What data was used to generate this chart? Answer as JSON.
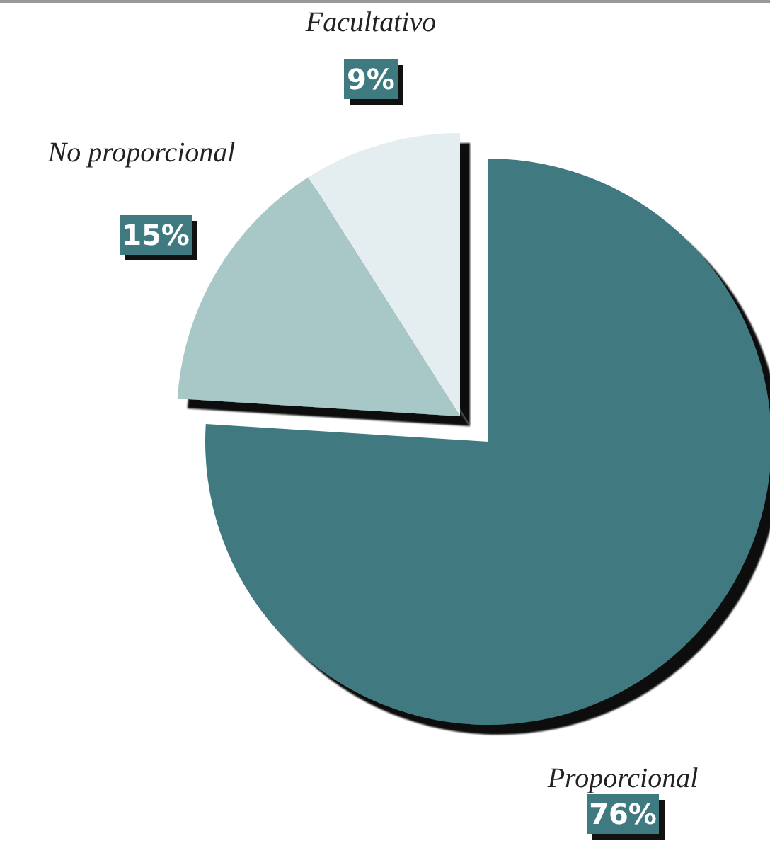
{
  "chart_data": {
    "type": "pie",
    "categories": [
      "Proporcional",
      "No proporcional",
      "Facultativo"
    ],
    "values": [
      76,
      15,
      9
    ],
    "value_labels": [
      "76%",
      "15%",
      "9%"
    ],
    "colors": [
      "#3f7a80",
      "#a8c8c8",
      "#e4eef0"
    ]
  }
}
